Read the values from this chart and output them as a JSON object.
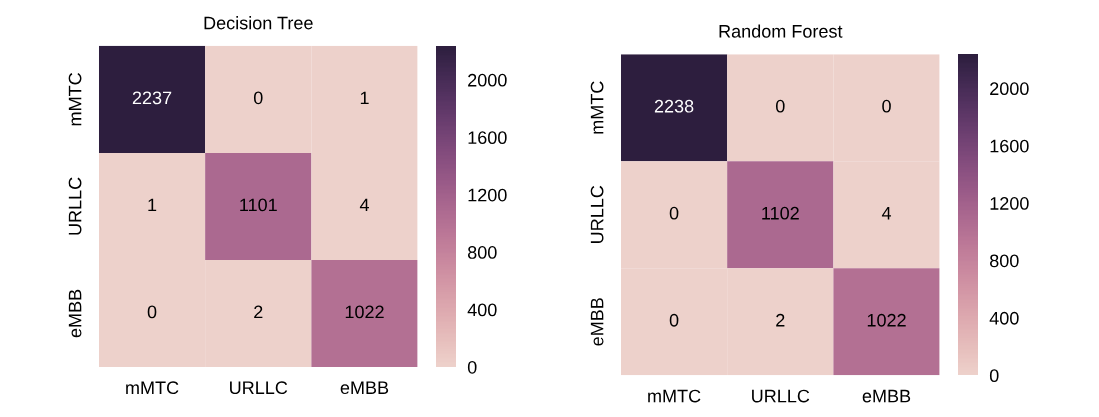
{
  "chart_data": [
    {
      "type": "heatmap",
      "title": "Decision Tree",
      "categories": [
        "mMTC",
        "URLLC",
        "eMBB"
      ],
      "y_categories": [
        "mMTC",
        "URLLC",
        "eMBB"
      ],
      "cells": [
        [
          2237,
          0,
          1
        ],
        [
          1,
          1101,
          4
        ],
        [
          0,
          2,
          1022
        ]
      ],
      "clim": [
        0,
        2237
      ],
      "cticks": [
        0,
        400,
        800,
        1200,
        1600,
        2000
      ],
      "data_labels": true
    },
    {
      "type": "heatmap",
      "title": "Random Forest",
      "categories": [
        "mMTC",
        "URLLC",
        "eMBB"
      ],
      "y_categories": [
        "mMTC",
        "URLLC",
        "eMBB"
      ],
      "cells": [
        [
          2238,
          0,
          0
        ],
        [
          0,
          1102,
          4
        ],
        [
          0,
          2,
          1022
        ]
      ],
      "clim": [
        0,
        2238
      ],
      "cticks": [
        0,
        400,
        800,
        1200,
        1600,
        2000
      ],
      "data_labels": true
    }
  ]
}
